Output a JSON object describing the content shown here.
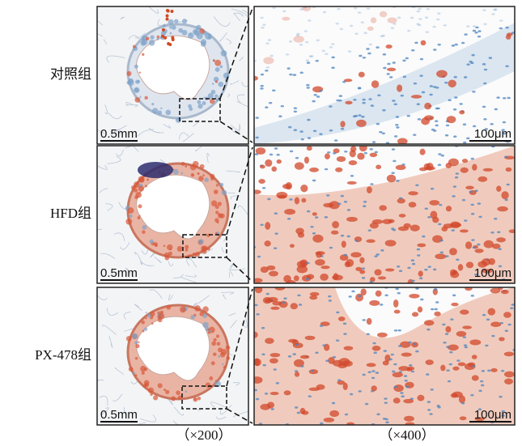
{
  "rows": [
    {
      "label": "对照组",
      "left_scale": "0.5mm",
      "right_scale": "100μm"
    },
    {
      "label": "HFD组",
      "left_scale": "0.5mm",
      "right_scale": "100μm"
    },
    {
      "label": "PX-478组",
      "left_scale": "0.5mm",
      "right_scale": "100μm"
    }
  ],
  "columns": [
    "（×200）",
    "（×400）"
  ]
}
